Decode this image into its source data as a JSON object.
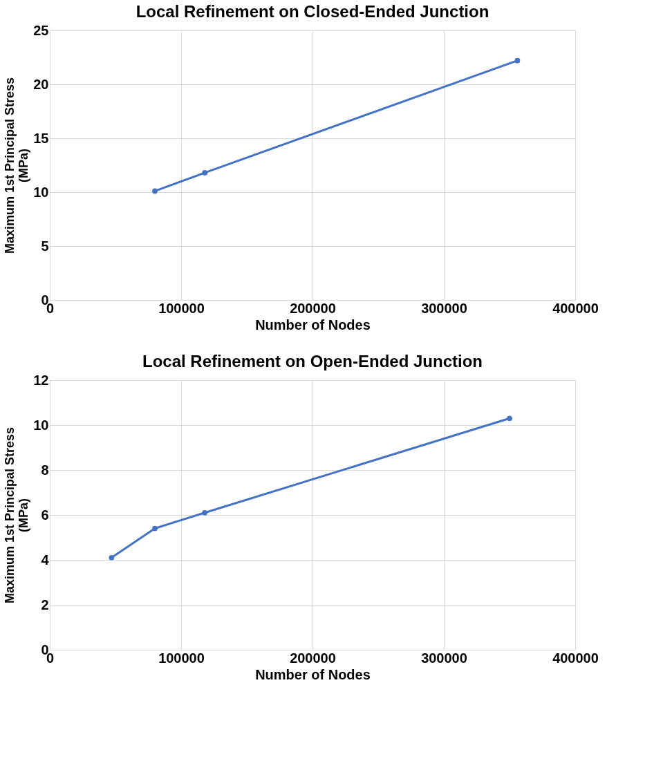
{
  "chart_data": [
    {
      "type": "line",
      "title": "Local Refinement on Closed-Ended Junction",
      "xlabel": "Number of Nodes",
      "ylabel": "Maximum 1st Principal Stress (MPa)",
      "x": [
        80000,
        118000,
        356000
      ],
      "series": [
        {
          "color": "#4472c4",
          "values": [
            10.1,
            11.8,
            22.2
          ]
        }
      ],
      "xlim": [
        0,
        400000
      ],
      "xticks": [
        0,
        100000,
        200000,
        300000,
        400000
      ],
      "ylim": [
        0,
        25
      ],
      "yticks": [
        0,
        5,
        10,
        15,
        20,
        25
      ],
      "grid": true,
      "marker": "circle",
      "line_style": "solid"
    },
    {
      "type": "line",
      "title": "Local Refinement on Open-Ended Junction",
      "xlabel": "Number of Nodes",
      "ylabel": "Maximum 1st Principal Stress (MPa)",
      "x": [
        47000,
        80000,
        118000,
        350000
      ],
      "series": [
        {
          "color": "#4472c4",
          "values": [
            4.1,
            5.4,
            6.1,
            10.3
          ]
        }
      ],
      "xlim": [
        0,
        400000
      ],
      "xticks": [
        0,
        100000,
        200000,
        300000,
        400000
      ],
      "ylim": [
        0,
        12
      ],
      "yticks": [
        0,
        2,
        4,
        6,
        8,
        10,
        12
      ],
      "grid": true,
      "marker": "circle",
      "line_style": "solid"
    }
  ]
}
